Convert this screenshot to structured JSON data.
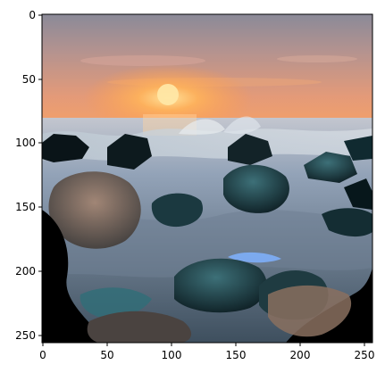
{
  "image": {
    "description_tag": "seascape-sunset-photo",
    "colors": {
      "sky_top": "#8a8a98",
      "sky_mid": "#c59a92",
      "horizon_glow": "#ff9a4a",
      "sun": "#ffd98a",
      "sea": "#7d8fa6",
      "rock_dark": "#12242a",
      "rock_teal": "#2e5f66",
      "shadow": "#000000",
      "foam": "#c9d2dc",
      "splash_blue": "#7fb2ff",
      "sand_warm": "#9b7f6a"
    }
  },
  "axes": {
    "x_ticks": [
      "0",
      "50",
      "100",
      "150",
      "200",
      "250"
    ],
    "y_ticks": [
      "0",
      "50",
      "100",
      "150",
      "200",
      "250"
    ],
    "xlim": [
      0,
      256
    ],
    "ylim": [
      256,
      0
    ]
  }
}
